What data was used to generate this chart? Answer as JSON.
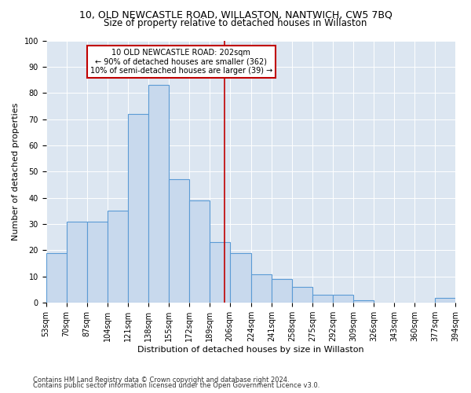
{
  "title": "10, OLD NEWCASTLE ROAD, WILLASTON, NANTWICH, CW5 7BQ",
  "subtitle": "Size of property relative to detached houses in Willaston",
  "xlabel": "Distribution of detached houses by size in Willaston",
  "ylabel": "Number of detached properties",
  "footer_line1": "Contains HM Land Registry data © Crown copyright and database right 2024.",
  "footer_line2": "Contains public sector information licensed under the Open Government Licence v3.0.",
  "annotation_line1": "10 OLD NEWCASTLE ROAD: 202sqm",
  "annotation_line2": "← 90% of detached houses are smaller (362)",
  "annotation_line3": "10% of semi-detached houses are larger (39) →",
  "vline_x": 202,
  "bar_edges": [
    53,
    70,
    87,
    104,
    121,
    138,
    155,
    172,
    189,
    206,
    224,
    241,
    258,
    275,
    292,
    309,
    326,
    343,
    360,
    377,
    394
  ],
  "bar_heights": [
    19,
    31,
    31,
    35,
    72,
    83,
    47,
    39,
    23,
    19,
    11,
    9,
    6,
    3,
    3,
    1,
    0,
    0,
    0,
    2
  ],
  "bar_color": "#c8d9ed",
  "bar_edge_color": "#5b9bd5",
  "vline_color": "#c00000",
  "annotation_box_color": "#c00000",
  "background_color": "#dce6f1",
  "ylim": [
    0,
    100
  ],
  "xlim": [
    53,
    394
  ],
  "tick_labels": [
    "53sqm",
    "70sqm",
    "87sqm",
    "104sqm",
    "121sqm",
    "138sqm",
    "155sqm",
    "172sqm",
    "189sqm",
    "206sqm",
    "224sqm",
    "241sqm",
    "258sqm",
    "275sqm",
    "292sqm",
    "309sqm",
    "326sqm",
    "343sqm",
    "360sqm",
    "377sqm",
    "394sqm"
  ],
  "yticks": [
    0,
    10,
    20,
    30,
    40,
    50,
    60,
    70,
    80,
    90,
    100
  ],
  "title_fontsize": 9,
  "subtitle_fontsize": 8.5,
  "axis_label_fontsize": 8,
  "tick_fontsize": 7,
  "annotation_fontsize": 7,
  "footer_fontsize": 6
}
